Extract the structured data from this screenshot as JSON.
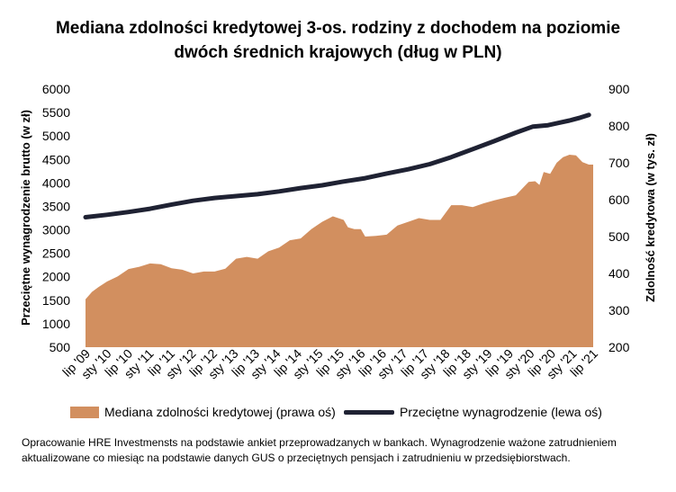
{
  "title_line1": "Mediana zdolności kredytowej 3-os. rodziny z dochodem na poziomie",
  "title_line2": "dwóch średnich krajowych (dług w PLN)",
  "footnote": "Opracowanie HRE Investmensts na podstawie ankiet przeprowadzanych w bankach. Wynagrodzenie ważone zatrudnieniem aktualizowane co miesiąc na podstawie danych GUS o przeciętnych pensjach i zatrudnieniu w przedsiębiorstwach.",
  "colors": {
    "area": "#D28F5F",
    "line": "#1F2233"
  },
  "chart_data": {
    "type": "area+line",
    "x_ticks": [
      "lip '09",
      "sty '10",
      "lip '10",
      "sty '11",
      "lip '11",
      "sty '12",
      "lip '12",
      "sty '13",
      "lip '13",
      "sty '14",
      "lip '14",
      "sty '15",
      "lip '15",
      "sty '16",
      "lip '16",
      "sty '17",
      "lip '17",
      "sty '18",
      "lip '18",
      "sty '19",
      "lip '19",
      "sty '20",
      "lip '20",
      "sty '21",
      "lip '21"
    ],
    "y_left": {
      "label": "Przeciętne wynagrodzenie brutto (w zł)",
      "min": 500,
      "max": 6000,
      "ticks": [
        "500",
        "1000",
        "1500",
        "2000",
        "2500",
        "3000",
        "3500",
        "4000",
        "4500",
        "5000",
        "5500",
        "6000"
      ]
    },
    "y_right": {
      "label": "Zdolność kredytowa (w tys. zł)",
      "min": 200,
      "max": 900,
      "ticks": [
        "200",
        "300",
        "400",
        "500",
        "600",
        "700",
        "800",
        "900"
      ]
    },
    "series": [
      {
        "name": "Mediana zdolności kredytowej (prawa oś)",
        "type": "area",
        "axis": "right",
        "points": [
          [
            0,
            330
          ],
          [
            0.3,
            350
          ],
          [
            0.6,
            363
          ],
          [
            1,
            378
          ],
          [
            1.5,
            392
          ],
          [
            2,
            412
          ],
          [
            2.5,
            418
          ],
          [
            3,
            427
          ],
          [
            3.5,
            425
          ],
          [
            4,
            414
          ],
          [
            4.5,
            410
          ],
          [
            5,
            400
          ],
          [
            5.5,
            405
          ],
          [
            6,
            405
          ],
          [
            6.5,
            413
          ],
          [
            7,
            440
          ],
          [
            7.5,
            445
          ],
          [
            8,
            440
          ],
          [
            8.5,
            460
          ],
          [
            9,
            470
          ],
          [
            9.5,
            490
          ],
          [
            10,
            495
          ],
          [
            10.5,
            520
          ],
          [
            11,
            540
          ],
          [
            11.5,
            555
          ],
          [
            12,
            545
          ],
          [
            12.2,
            525
          ],
          [
            12.5,
            520
          ],
          [
            12.8,
            520
          ],
          [
            13,
            500
          ],
          [
            13.5,
            502
          ],
          [
            14,
            505
          ],
          [
            14.5,
            530
          ],
          [
            15,
            540
          ],
          [
            15.5,
            550
          ],
          [
            16,
            545
          ],
          [
            16.5,
            545
          ],
          [
            17,
            585
          ],
          [
            17.5,
            585
          ],
          [
            18,
            580
          ],
          [
            18.5,
            590
          ],
          [
            19,
            598
          ],
          [
            19.5,
            605
          ],
          [
            20,
            612
          ],
          [
            20.3,
            630
          ],
          [
            20.6,
            648
          ],
          [
            20.9,
            650
          ],
          [
            21.1,
            640
          ],
          [
            21.3,
            675
          ],
          [
            21.6,
            670
          ],
          [
            21.9,
            700
          ],
          [
            22.2,
            715
          ],
          [
            22.5,
            722
          ],
          [
            22.8,
            720
          ],
          [
            23.1,
            702
          ],
          [
            23.4,
            695
          ],
          [
            23.6,
            695
          ]
        ]
      },
      {
        "name": "Przeciętne wynagrodzenie (lewa oś)",
        "type": "line",
        "axis": "left",
        "points": [
          [
            0,
            3270
          ],
          [
            1,
            3320
          ],
          [
            2,
            3380
          ],
          [
            3,
            3450
          ],
          [
            4,
            3540
          ],
          [
            5,
            3620
          ],
          [
            6,
            3680
          ],
          [
            7,
            3720
          ],
          [
            8,
            3760
          ],
          [
            9,
            3820
          ],
          [
            10,
            3890
          ],
          [
            11,
            3950
          ],
          [
            12,
            4030
          ],
          [
            13,
            4100
          ],
          [
            14,
            4200
          ],
          [
            15,
            4290
          ],
          [
            16,
            4400
          ],
          [
            17,
            4550
          ],
          [
            18,
            4720
          ],
          [
            19,
            4890
          ],
          [
            20,
            5070
          ],
          [
            20.8,
            5200
          ],
          [
            21.5,
            5230
          ],
          [
            22,
            5280
          ],
          [
            22.5,
            5330
          ],
          [
            23,
            5390
          ],
          [
            23.4,
            5450
          ]
        ]
      }
    ]
  }
}
